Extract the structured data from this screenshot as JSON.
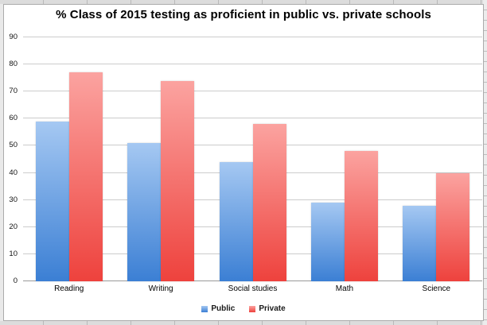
{
  "chart_data": {
    "type": "bar",
    "title": "% Class of 2015 testing as proficient in public vs. private schools",
    "categories": [
      "Reading",
      "Writing",
      "Social studies",
      "Math",
      "Science"
    ],
    "series": [
      {
        "name": "Public",
        "values": [
          59,
          51,
          44,
          29,
          28
        ],
        "color_top": "#A5C8F2",
        "color_bottom": "#3B7FD4"
      },
      {
        "name": "Private",
        "values": [
          77,
          74,
          58,
          48,
          40
        ],
        "color_top": "#FBA3A0",
        "color_bottom": "#EE423D"
      }
    ],
    "xlabel": "",
    "ylabel": "",
    "ylim": [
      0,
      90
    ],
    "yticks": [
      0,
      10,
      20,
      30,
      40,
      50,
      60,
      70,
      80,
      90
    ],
    "grid": true,
    "legend_position": "bottom",
    "gridline_color": "#CCCCCC",
    "axis_line_color": "#999999"
  }
}
